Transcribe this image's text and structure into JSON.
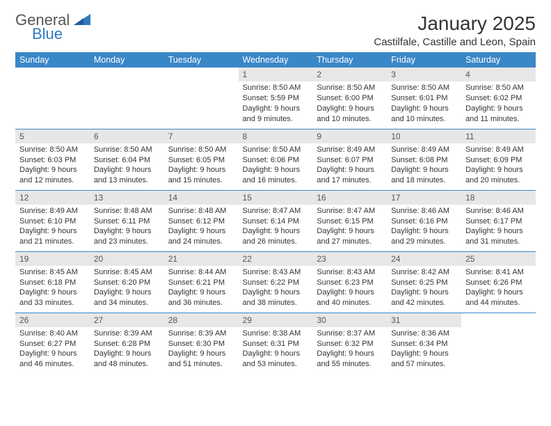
{
  "brand": {
    "line1": "General",
    "line2": "Blue",
    "triangle_color": "#2f7abf"
  },
  "title": "January 2025",
  "location": "Castilfale, Castille and Leon, Spain",
  "theme": {
    "header_bg": "#3a87c8",
    "header_text": "#ffffff",
    "row_divider": "#3a87c8",
    "daynum_bg": "#e7e7e7",
    "body_text": "#333333",
    "page_bg": "#ffffff",
    "title_fontsize": 28,
    "location_fontsize": 15,
    "dayhead_fontsize": 12.5,
    "body_fontsize": 11
  },
  "weekdays": [
    "Sunday",
    "Monday",
    "Tuesday",
    "Wednesday",
    "Thursday",
    "Friday",
    "Saturday"
  ],
  "weeks": [
    [
      {
        "empty": true
      },
      {
        "empty": true
      },
      {
        "empty": true
      },
      {
        "day": "1",
        "sunrise": "Sunrise: 8:50 AM",
        "sunset": "Sunset: 5:59 PM",
        "daylight": "Daylight: 9 hours and 9 minutes."
      },
      {
        "day": "2",
        "sunrise": "Sunrise: 8:50 AM",
        "sunset": "Sunset: 6:00 PM",
        "daylight": "Daylight: 9 hours and 10 minutes."
      },
      {
        "day": "3",
        "sunrise": "Sunrise: 8:50 AM",
        "sunset": "Sunset: 6:01 PM",
        "daylight": "Daylight: 9 hours and 10 minutes."
      },
      {
        "day": "4",
        "sunrise": "Sunrise: 8:50 AM",
        "sunset": "Sunset: 6:02 PM",
        "daylight": "Daylight: 9 hours and 11 minutes."
      }
    ],
    [
      {
        "day": "5",
        "sunrise": "Sunrise: 8:50 AM",
        "sunset": "Sunset: 6:03 PM",
        "daylight": "Daylight: 9 hours and 12 minutes."
      },
      {
        "day": "6",
        "sunrise": "Sunrise: 8:50 AM",
        "sunset": "Sunset: 6:04 PM",
        "daylight": "Daylight: 9 hours and 13 minutes."
      },
      {
        "day": "7",
        "sunrise": "Sunrise: 8:50 AM",
        "sunset": "Sunset: 6:05 PM",
        "daylight": "Daylight: 9 hours and 15 minutes."
      },
      {
        "day": "8",
        "sunrise": "Sunrise: 8:50 AM",
        "sunset": "Sunset: 6:06 PM",
        "daylight": "Daylight: 9 hours and 16 minutes."
      },
      {
        "day": "9",
        "sunrise": "Sunrise: 8:49 AM",
        "sunset": "Sunset: 6:07 PM",
        "daylight": "Daylight: 9 hours and 17 minutes."
      },
      {
        "day": "10",
        "sunrise": "Sunrise: 8:49 AM",
        "sunset": "Sunset: 6:08 PM",
        "daylight": "Daylight: 9 hours and 18 minutes."
      },
      {
        "day": "11",
        "sunrise": "Sunrise: 8:49 AM",
        "sunset": "Sunset: 6:09 PM",
        "daylight": "Daylight: 9 hours and 20 minutes."
      }
    ],
    [
      {
        "day": "12",
        "sunrise": "Sunrise: 8:49 AM",
        "sunset": "Sunset: 6:10 PM",
        "daylight": "Daylight: 9 hours and 21 minutes."
      },
      {
        "day": "13",
        "sunrise": "Sunrise: 8:48 AM",
        "sunset": "Sunset: 6:11 PM",
        "daylight": "Daylight: 9 hours and 23 minutes."
      },
      {
        "day": "14",
        "sunrise": "Sunrise: 8:48 AM",
        "sunset": "Sunset: 6:12 PM",
        "daylight": "Daylight: 9 hours and 24 minutes."
      },
      {
        "day": "15",
        "sunrise": "Sunrise: 8:47 AM",
        "sunset": "Sunset: 6:14 PM",
        "daylight": "Daylight: 9 hours and 26 minutes."
      },
      {
        "day": "16",
        "sunrise": "Sunrise: 8:47 AM",
        "sunset": "Sunset: 6:15 PM",
        "daylight": "Daylight: 9 hours and 27 minutes."
      },
      {
        "day": "17",
        "sunrise": "Sunrise: 8:46 AM",
        "sunset": "Sunset: 6:16 PM",
        "daylight": "Daylight: 9 hours and 29 minutes."
      },
      {
        "day": "18",
        "sunrise": "Sunrise: 8:46 AM",
        "sunset": "Sunset: 6:17 PM",
        "daylight": "Daylight: 9 hours and 31 minutes."
      }
    ],
    [
      {
        "day": "19",
        "sunrise": "Sunrise: 8:45 AM",
        "sunset": "Sunset: 6:18 PM",
        "daylight": "Daylight: 9 hours and 33 minutes."
      },
      {
        "day": "20",
        "sunrise": "Sunrise: 8:45 AM",
        "sunset": "Sunset: 6:20 PM",
        "daylight": "Daylight: 9 hours and 34 minutes."
      },
      {
        "day": "21",
        "sunrise": "Sunrise: 8:44 AM",
        "sunset": "Sunset: 6:21 PM",
        "daylight": "Daylight: 9 hours and 36 minutes."
      },
      {
        "day": "22",
        "sunrise": "Sunrise: 8:43 AM",
        "sunset": "Sunset: 6:22 PM",
        "daylight": "Daylight: 9 hours and 38 minutes."
      },
      {
        "day": "23",
        "sunrise": "Sunrise: 8:43 AM",
        "sunset": "Sunset: 6:23 PM",
        "daylight": "Daylight: 9 hours and 40 minutes."
      },
      {
        "day": "24",
        "sunrise": "Sunrise: 8:42 AM",
        "sunset": "Sunset: 6:25 PM",
        "daylight": "Daylight: 9 hours and 42 minutes."
      },
      {
        "day": "25",
        "sunrise": "Sunrise: 8:41 AM",
        "sunset": "Sunset: 6:26 PM",
        "daylight": "Daylight: 9 hours and 44 minutes."
      }
    ],
    [
      {
        "day": "26",
        "sunrise": "Sunrise: 8:40 AM",
        "sunset": "Sunset: 6:27 PM",
        "daylight": "Daylight: 9 hours and 46 minutes."
      },
      {
        "day": "27",
        "sunrise": "Sunrise: 8:39 AM",
        "sunset": "Sunset: 6:28 PM",
        "daylight": "Daylight: 9 hours and 48 minutes."
      },
      {
        "day": "28",
        "sunrise": "Sunrise: 8:39 AM",
        "sunset": "Sunset: 6:30 PM",
        "daylight": "Daylight: 9 hours and 51 minutes."
      },
      {
        "day": "29",
        "sunrise": "Sunrise: 8:38 AM",
        "sunset": "Sunset: 6:31 PM",
        "daylight": "Daylight: 9 hours and 53 minutes."
      },
      {
        "day": "30",
        "sunrise": "Sunrise: 8:37 AM",
        "sunset": "Sunset: 6:32 PM",
        "daylight": "Daylight: 9 hours and 55 minutes."
      },
      {
        "day": "31",
        "sunrise": "Sunrise: 8:36 AM",
        "sunset": "Sunset: 6:34 PM",
        "daylight": "Daylight: 9 hours and 57 minutes."
      },
      {
        "empty": true
      }
    ]
  ]
}
